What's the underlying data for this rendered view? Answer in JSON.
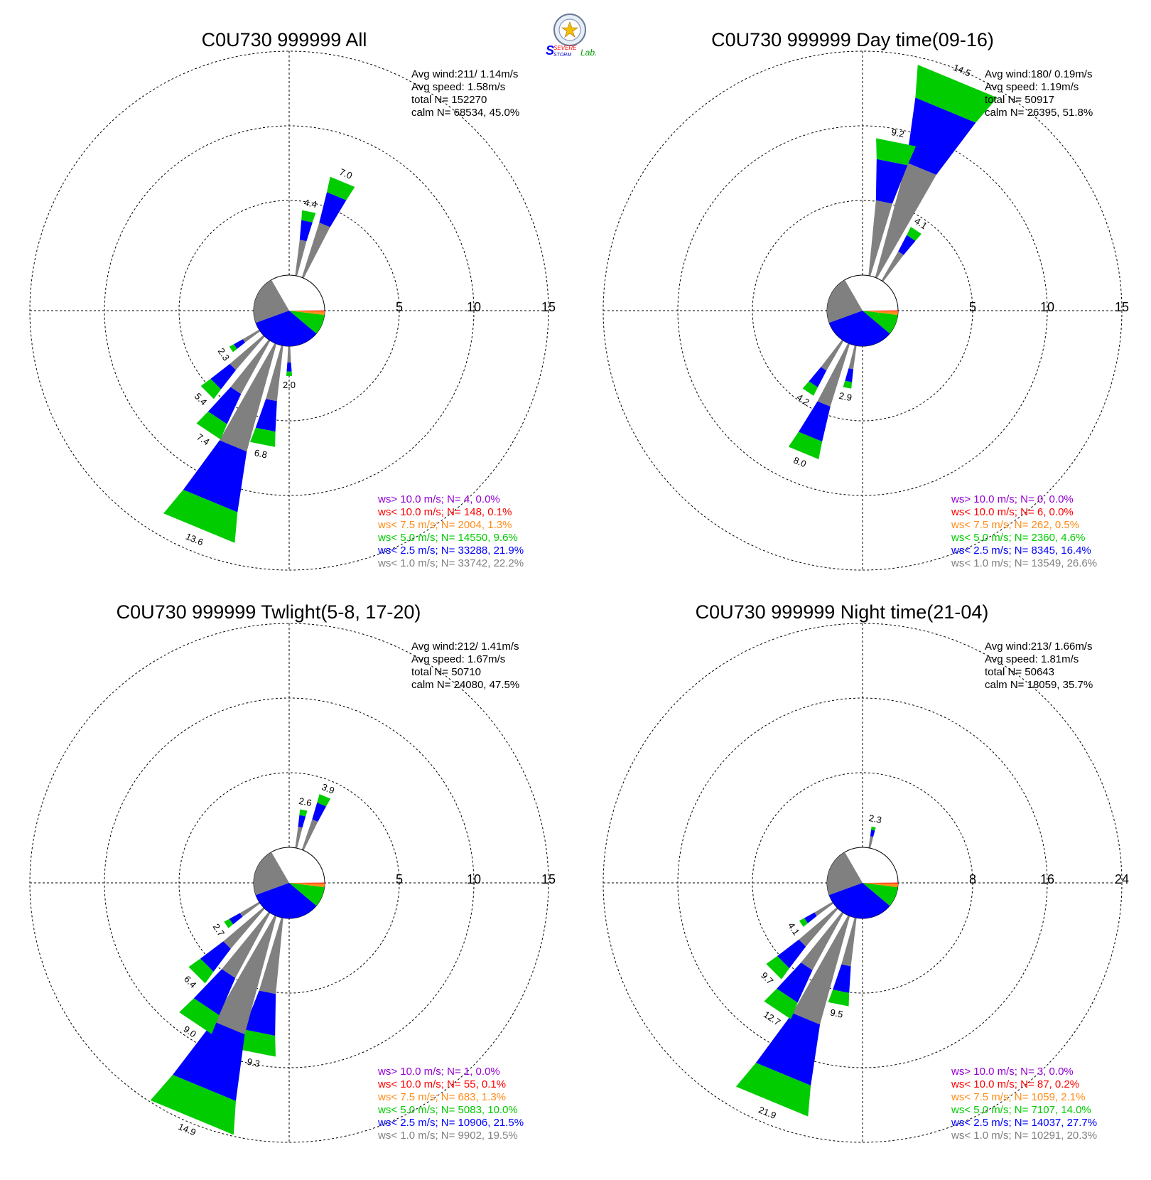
{
  "logo": {
    "text_top": "SEVERE",
    "text_bottom": "STORM",
    "text_lab": "Lab."
  },
  "legend_colors": [
    "#9400d3",
    "#ff0000",
    "#ff8c1a",
    "#00cc00",
    "#0000ff",
    "#808080"
  ],
  "chart_data": [
    {
      "type": "wind-rose",
      "title": "C0U730 999999 All",
      "stats": [
        "Avg wind:211/ 1.14m/s",
        "Avg speed: 1.58m/s",
        "total N=      152270",
        "calm N=  68534,  45.0%"
      ],
      "ring_labels": [
        "5",
        "10",
        "15"
      ],
      "rmax": 15,
      "calm_pct": 45.0,
      "bars": [
        {
          "dir": 22.5,
          "total": 7.0,
          "label": "7.0"
        },
        {
          "dir": 11.25,
          "total": 4.4,
          "label": "4.4"
        },
        {
          "dir": 180,
          "total": 2.0,
          "label": "2.0"
        },
        {
          "dir": 191.25,
          "total": 6.8,
          "label": "6.8"
        },
        {
          "dir": 202.5,
          "total": 13.6,
          "label": "13.6"
        },
        {
          "dir": 213.75,
          "total": 7.4,
          "label": "7.4"
        },
        {
          "dir": 225,
          "total": 5.4,
          "label": "5.4"
        },
        {
          "dir": 236.25,
          "total": 2.3,
          "label": "2.3"
        }
      ],
      "legend": [
        "ws> 10.0 m/s; N=    4,  0.0%",
        "ws< 10.0 m/s; N=  148,  0.1%",
        "ws<  7.5 m/s; N=  2004,  1.3%",
        "ws<  5.0 m/s; N= 14550,  9.6%",
        "ws<  2.5 m/s; N= 33288, 21.9%",
        "ws<  1.0 m/s; N= 33742, 22.2%"
      ]
    },
    {
      "type": "wind-rose",
      "title": "C0U730 999999 Day time(09-16)",
      "stats": [
        "Avg wind:180/ 0.19m/s",
        "Avg speed: 1.19m/s",
        "total N=      50917",
        "calm N=  26395,  51.8%"
      ],
      "ring_labels": [
        "5",
        "10",
        "15"
      ],
      "rmax": 15,
      "calm_pct": 51.8,
      "bars": [
        {
          "dir": 22.5,
          "total": 14.5,
          "label": "14.5"
        },
        {
          "dir": 11.25,
          "total": 9.2,
          "label": "9.2"
        },
        {
          "dir": 33.75,
          "total": 4.1,
          "label": "4.1"
        },
        {
          "dir": 191.25,
          "total": 2.9,
          "label": "2.9"
        },
        {
          "dir": 202.5,
          "total": 8.0,
          "label": "8.0"
        },
        {
          "dir": 213.75,
          "total": 4.2,
          "label": "4.2"
        }
      ],
      "legend": [
        "ws> 10.0 m/s; N=    0,  0.0%",
        "ws< 10.0 m/s; N=    6,  0.0%",
        "ws<  7.5 m/s; N=   262,  0.5%",
        "ws<  5.0 m/s; N=  2360,  4.6%",
        "ws<  2.5 m/s; N=  8345, 16.4%",
        "ws<  1.0 m/s; N= 13549, 26.6%"
      ]
    },
    {
      "type": "wind-rose",
      "title": "C0U730 999999 Twlight(5-8, 17-20)",
      "stats": [
        "Avg wind:212/ 1.41m/s",
        "Avg speed: 1.67m/s",
        "total N=      50710",
        "calm N=  24080,  47.5%"
      ],
      "ring_labels": [
        "5",
        "10",
        "15"
      ],
      "rmax": 15,
      "calm_pct": 47.5,
      "bars": [
        {
          "dir": 22.5,
          "total": 3.9,
          "label": "3.9"
        },
        {
          "dir": 11.25,
          "total": 2.6,
          "label": "2.6"
        },
        {
          "dir": 191.25,
          "total": 9.3,
          "label": "9.3"
        },
        {
          "dir": 202.5,
          "total": 14.9,
          "label": "14.9"
        },
        {
          "dir": 213.75,
          "total": 9.0,
          "label": "9.0"
        },
        {
          "dir": 225,
          "total": 6.4,
          "label": "6.4"
        },
        {
          "dir": 236.25,
          "total": 2.7,
          "label": "2.7"
        }
      ],
      "legend": [
        "ws> 10.0 m/s; N=    1,  0.0%",
        "ws< 10.0 m/s; N=   55,  0.1%",
        "ws<  7.5 m/s; N=   683,  1.3%",
        "ws<  5.0 m/s; N=  5083, 10.0%",
        "ws<  2.5 m/s; N= 10906, 21.5%",
        "ws<  1.0 m/s; N=  9902, 19.5%"
      ]
    },
    {
      "type": "wind-rose",
      "title": "C0U730 999999 Night time(21-04)",
      "stats": [
        "Avg wind:213/ 1.66m/s",
        "Avg speed: 1.81m/s",
        "total N=      50643",
        "calm N=  18059,  35.7%"
      ],
      "ring_labels": [
        "8",
        "16",
        "24"
      ],
      "rmax": 24,
      "calm_pct": 35.7,
      "bars": [
        {
          "dir": 11.25,
          "total": 2.3,
          "label": "2.3"
        },
        {
          "dir": 191.25,
          "total": 9.5,
          "label": "9.5"
        },
        {
          "dir": 202.5,
          "total": 21.9,
          "label": "21.9"
        },
        {
          "dir": 213.75,
          "total": 12.7,
          "label": "12.7"
        },
        {
          "dir": 225,
          "total": 9.7,
          "label": "9.7"
        },
        {
          "dir": 236.25,
          "total": 4.1,
          "label": "4.1"
        }
      ],
      "legend": [
        "ws> 10.0 m/s; N=    3,  0.0%",
        "ws< 10.0 m/s; N=   87,  0.2%",
        "ws<  7.5 m/s; N=  1059,  2.1%",
        "ws<  5.0 m/s; N=  7107, 14.0%",
        "ws<  2.5 m/s; N= 14037, 27.7%",
        "ws<  1.0 m/s; N= 10291, 20.3%"
      ]
    }
  ]
}
